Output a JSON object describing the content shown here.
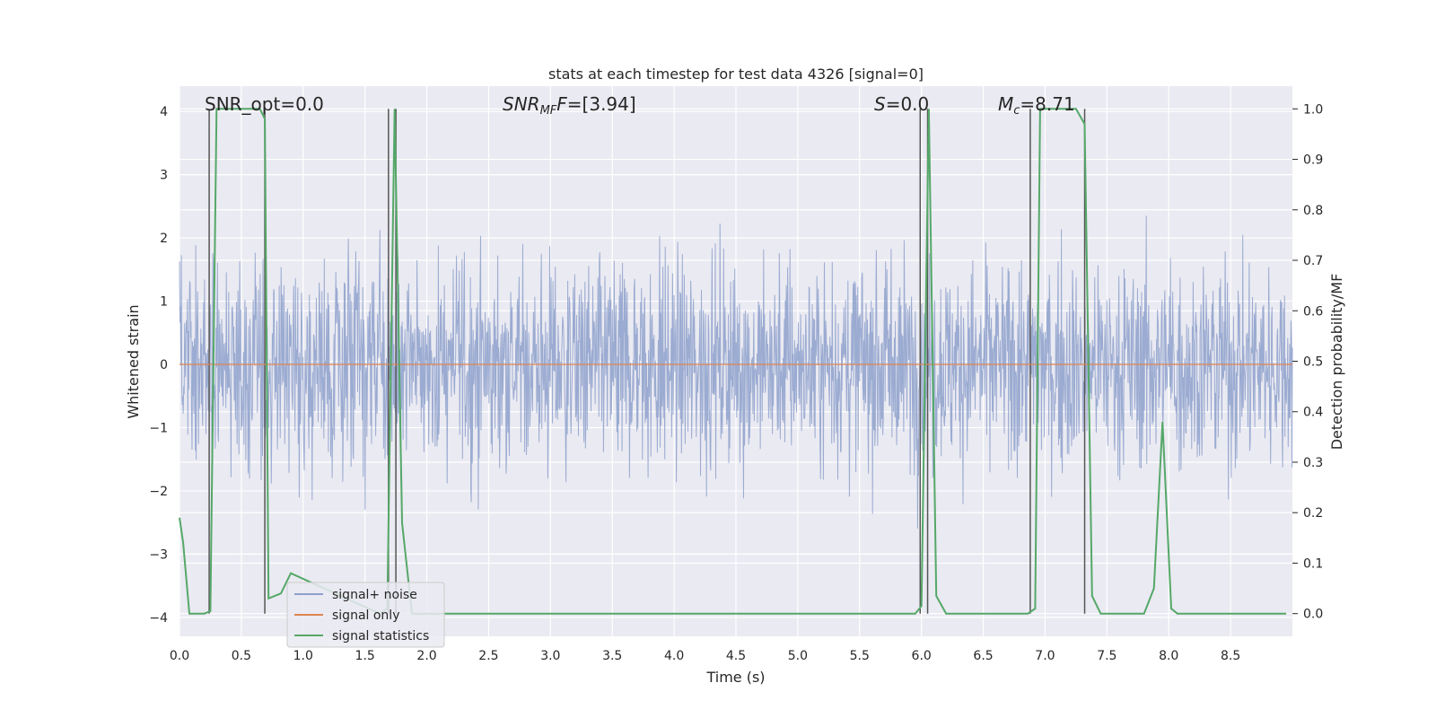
{
  "chart_data": {
    "type": "line",
    "title": "stats at each timestep for test data 4326 [signal=0]",
    "xlabel": "Time (s)",
    "ylabel": "Whitened strain",
    "y2label": "Detection probability/MF",
    "xlim": [
      0.0,
      9.0
    ],
    "ylim": [
      -4.3,
      4.4
    ],
    "y2lim": [
      -0.045,
      1.045
    ],
    "x_ticks": [
      "0.0",
      "0.5",
      "1.0",
      "1.5",
      "2.0",
      "2.5",
      "3.0",
      "3.5",
      "4.0",
      "4.5",
      "5.0",
      "5.5",
      "6.0",
      "6.5",
      "7.0",
      "7.5",
      "8.0",
      "8.5"
    ],
    "y_ticks": [
      "4",
      "3",
      "2",
      "1",
      "0",
      "−1",
      "−2",
      "−3",
      "−4"
    ],
    "y2_ticks": [
      "1.0",
      "0.9",
      "0.8",
      "0.7",
      "0.6",
      "0.5",
      "0.4",
      "0.3",
      "0.2",
      "0.1",
      "0.0"
    ],
    "grid": true,
    "legend_position": "lower-left",
    "annotations": [
      {
        "name": "snr-opt",
        "text": "SNR_opt=0.0"
      },
      {
        "name": "snr-mf",
        "text": "SNR",
        "sub": "MF",
        "tail": "F=[3.94]"
      },
      {
        "name": "s-value",
        "text": "S",
        "tail": "=0.0"
      },
      {
        "name": "mc-value",
        "text": "M",
        "sub": "c",
        "tail": "=8.71"
      }
    ],
    "series": [
      {
        "name": "signal+ noise",
        "color": "#8da0cb",
        "axis": "left",
        "description_values": {
          "amplitude_core": 1.6,
          "amplitude_peak": 4.0
        }
      },
      {
        "name": "signal only",
        "color": "#dd8452",
        "axis": "left",
        "values_constant": 0.0
      },
      {
        "name": "signal statistics",
        "color": "#55a868",
        "axis": "right",
        "x": [
          0.0,
          0.03,
          0.08,
          0.2,
          0.25,
          0.3,
          0.35,
          0.65,
          0.69,
          0.72,
          0.82,
          0.9,
          1.62,
          1.68,
          1.74,
          1.8,
          1.88,
          5.95,
          6.0,
          6.06,
          6.12,
          6.2,
          6.86,
          6.92,
          6.96,
          7.25,
          7.32,
          7.38,
          7.45,
          7.8,
          7.88,
          7.95,
          8.02,
          8.07,
          8.95
        ],
        "y": [
          0.19,
          0.14,
          0.0,
          0.0,
          0.005,
          1.0,
          1.0,
          1.0,
          0.98,
          0.03,
          0.04,
          0.08,
          0.0,
          0.01,
          1.0,
          0.18,
          0.0,
          0.0,
          0.015,
          1.0,
          0.035,
          0.0,
          0.0,
          0.01,
          1.0,
          1.0,
          0.97,
          0.035,
          0.0,
          0.0,
          0.05,
          0.38,
          0.01,
          0.0,
          0.0
        ]
      }
    ],
    "vertical_lines": [
      0.24,
      0.69,
      1.69,
      1.75,
      5.99,
      6.05,
      6.88,
      7.32
    ]
  }
}
